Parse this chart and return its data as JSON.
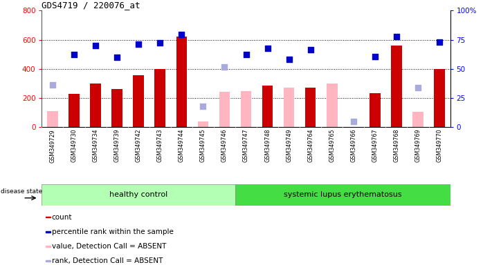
{
  "title": "GDS4719 / 220076_at",
  "samples": [
    "GSM349729",
    "GSM349730",
    "GSM349734",
    "GSM349739",
    "GSM349742",
    "GSM349743",
    "GSM349744",
    "GSM349745",
    "GSM349746",
    "GSM349747",
    "GSM349748",
    "GSM349749",
    "GSM349764",
    "GSM349765",
    "GSM349766",
    "GSM349767",
    "GSM349768",
    "GSM349769",
    "GSM349770"
  ],
  "count_values": [
    null,
    230,
    300,
    260,
    355,
    400,
    620,
    null,
    null,
    null,
    285,
    null,
    270,
    null,
    null,
    235,
    560,
    null,
    400
  ],
  "count_absent_values": [
    110,
    null,
    null,
    null,
    null,
    null,
    null,
    40,
    245,
    250,
    null,
    270,
    null,
    300,
    null,
    null,
    null,
    105,
    null
  ],
  "percentile_values": [
    null,
    500,
    560,
    480,
    570,
    580,
    635,
    null,
    null,
    500,
    540,
    465,
    530,
    null,
    null,
    485,
    620,
    null,
    585
  ],
  "rank_absent_values": [
    290,
    null,
    null,
    null,
    null,
    null,
    null,
    145,
    415,
    null,
    null,
    null,
    null,
    null,
    40,
    null,
    null,
    270,
    null
  ],
  "healthy_count": 9,
  "lupus_count": 10,
  "ylim_left": [
    0,
    800
  ],
  "ylim_right": [
    0,
    100
  ],
  "yticks_left": [
    0,
    200,
    400,
    600,
    800
  ],
  "yticks_right": [
    0,
    25,
    50,
    75,
    100
  ],
  "group_labels": [
    "healthy control",
    "systemic lupus erythematosus"
  ],
  "healthy_color": "#b3ffb3",
  "lupus_color": "#44dd44",
  "bar_color_count": "#cc0000",
  "bar_color_absent": "#ffb6c1",
  "dot_color_percentile": "#0000cc",
  "dot_color_rank_absent": "#aaaadd",
  "grid_color": "#000000",
  "legend_items": [
    {
      "label": "count",
      "color": "#cc0000"
    },
    {
      "label": "percentile rank within the sample",
      "color": "#0000cc"
    },
    {
      "label": "value, Detection Call = ABSENT",
      "color": "#ffb6c1"
    },
    {
      "label": "rank, Detection Call = ABSENT",
      "color": "#aaaadd"
    }
  ]
}
